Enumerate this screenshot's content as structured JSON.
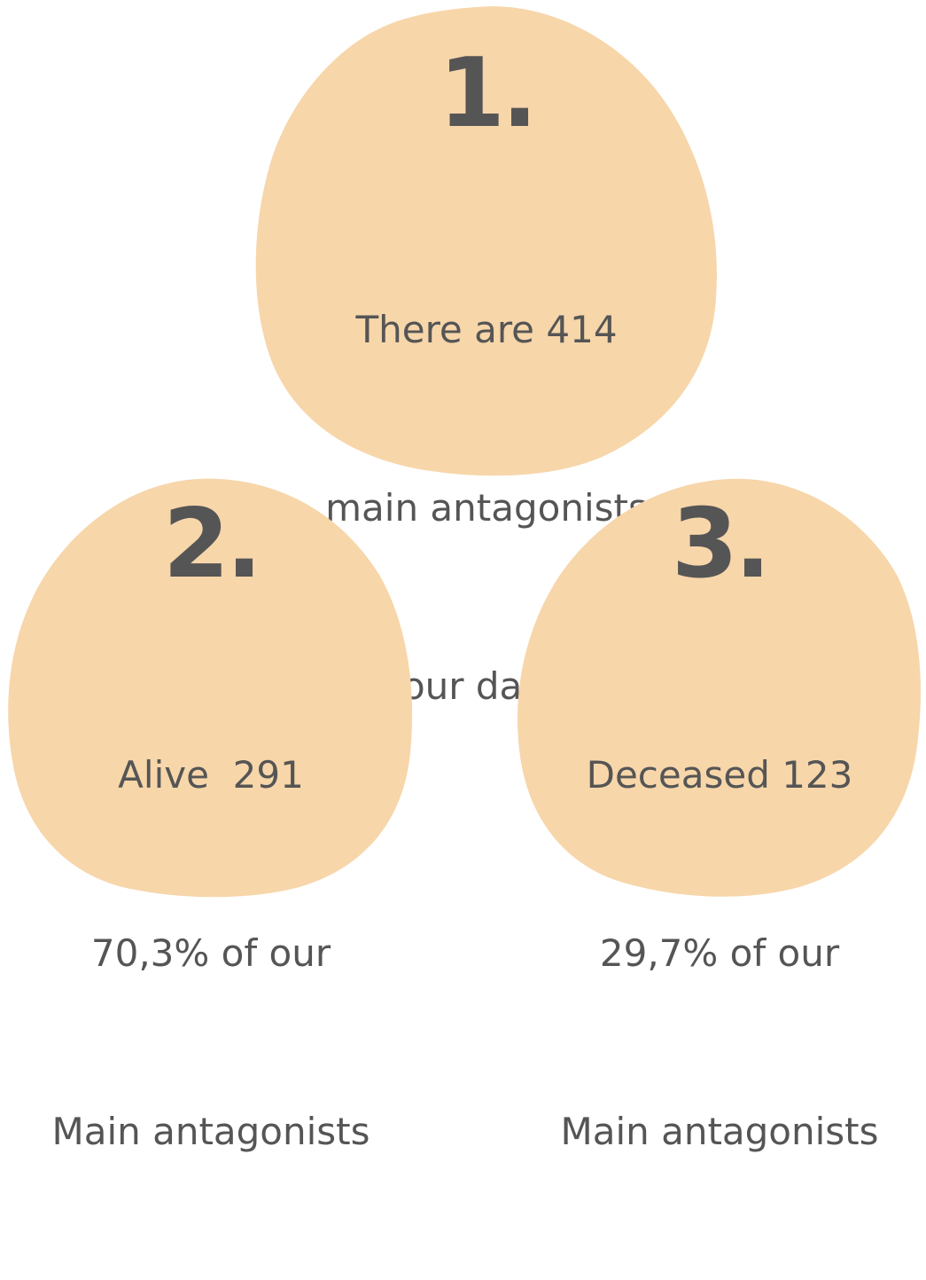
{
  "colors": {
    "blob_fill": "#F7D6AA",
    "text": "#555555",
    "background": "#FFFFFF"
  },
  "facts": [
    {
      "number": "1.",
      "lines": [
        "There are 414",
        "main antagonists",
        "in our dataset"
      ]
    },
    {
      "number": "2.",
      "lines": [
        "Alive  291",
        "70,3% of our",
        "Main antagonists"
      ]
    },
    {
      "number": "3.",
      "lines": [
        "Deceased 123",
        "29,7% of our",
        "Main antagonists"
      ]
    }
  ]
}
